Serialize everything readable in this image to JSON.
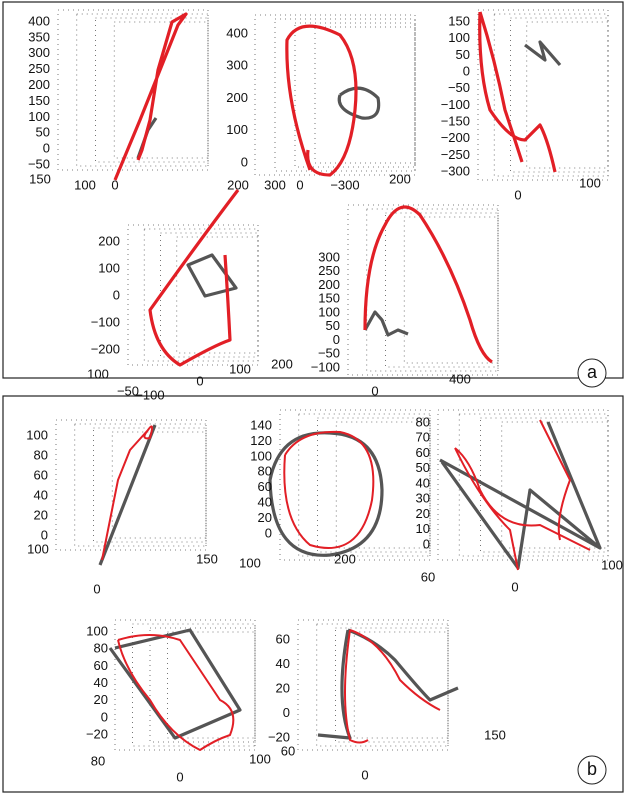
{
  "panels": [
    {
      "label": "a",
      "plots": [
        {
          "z_ticks": [
            "400",
            "350",
            "300",
            "250",
            "200",
            "150",
            "100",
            "50",
            "0",
            "−50"
          ],
          "axis_labels": [
            "150",
            "100",
            "0",
            "300"
          ]
        },
        {
          "z_ticks": [
            "400",
            "300",
            "200",
            "100",
            "0"
          ],
          "axis_labels": [
            "200",
            "0",
            "−300",
            "200"
          ]
        },
        {
          "z_ticks": [
            "150",
            "100",
            "50",
            "0",
            "−50",
            "−100",
            "−150",
            "−200",
            "−250",
            "−300"
          ],
          "axis_labels": [
            "0",
            "100"
          ]
        },
        {
          "z_ticks": [
            "200",
            "100",
            "0",
            "−100",
            "−200"
          ],
          "axis_labels": [
            "100",
            "−50",
            "−100",
            "0",
            "100",
            "200"
          ]
        },
        {
          "z_ticks": [
            "300",
            "250",
            "200",
            "150",
            "100",
            "50",
            "0",
            "−50",
            "−100"
          ],
          "axis_labels": [
            "0",
            "400"
          ]
        }
      ]
    },
    {
      "label": "b",
      "plots": [
        {
          "z_ticks": [
            "100",
            "80",
            "60",
            "40",
            "20",
            "0"
          ],
          "axis_labels": [
            "100",
            "0",
            "150"
          ]
        },
        {
          "z_ticks": [
            "140",
            "120",
            "100",
            "80",
            "60",
            "40",
            "20",
            "0"
          ],
          "axis_labels": [
            "100",
            "200"
          ]
        },
        {
          "z_ticks": [
            "80",
            "70",
            "60",
            "50",
            "40",
            "30",
            "20",
            "10",
            "0"
          ],
          "axis_labels": [
            "60",
            "0",
            "100"
          ]
        },
        {
          "z_ticks": [
            "100",
            "80",
            "60",
            "40",
            "20",
            "0",
            "−20"
          ],
          "axis_labels": [
            "80",
            "0",
            "100"
          ]
        },
        {
          "z_ticks": [
            "60",
            "40",
            "20",
            "0",
            "−20"
          ],
          "axis_labels": [
            "60",
            "0",
            "150"
          ]
        }
      ]
    }
  ]
}
